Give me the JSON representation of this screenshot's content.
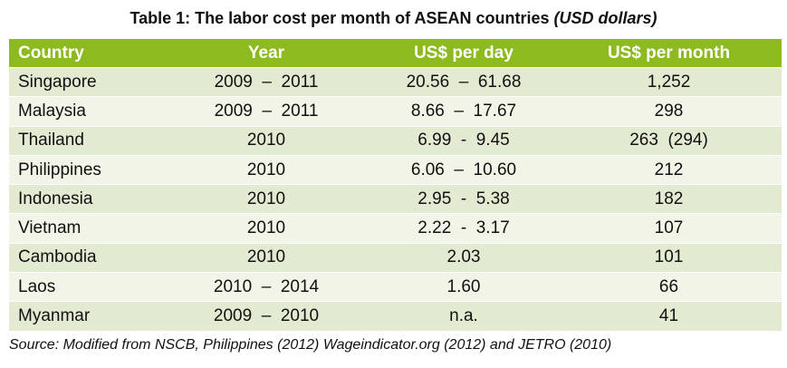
{
  "title": {
    "text": "Table 1: The labor cost per month of ASEAN countries",
    "unit": "(USD dollars)"
  },
  "table": {
    "header": [
      "Country",
      "Year",
      "US$ per day",
      "US$ per month"
    ],
    "rows": [
      [
        "Singapore",
        "2009  –  2011",
        "20.56  –  61.68",
        "1,252"
      ],
      [
        "Malaysia",
        "2009  –  2011",
        "8.66  –  17.67",
        "298"
      ],
      [
        "Thailand",
        "2010",
        "6.99  -  9.45",
        "263  (294)"
      ],
      [
        "Philippines",
        "2010",
        "6.06  –  10.60",
        "212"
      ],
      [
        "Indonesia",
        "2010",
        "2.95  -  5.38",
        "182"
      ],
      [
        "Vietnam",
        "2010",
        "2.22  -  3.17",
        "107"
      ],
      [
        "Cambodia",
        "2010",
        "2.03",
        "101"
      ],
      [
        "Laos",
        "2010  –  2014",
        "1.60",
        "66"
      ],
      [
        "Myanmar",
        "2009  –  2010",
        "n.a.",
        "41"
      ]
    ]
  },
  "source": "Source: Modified from NSCB, Philippines (2012) Wageindicator.org (2012) and JETRO (2010)"
}
